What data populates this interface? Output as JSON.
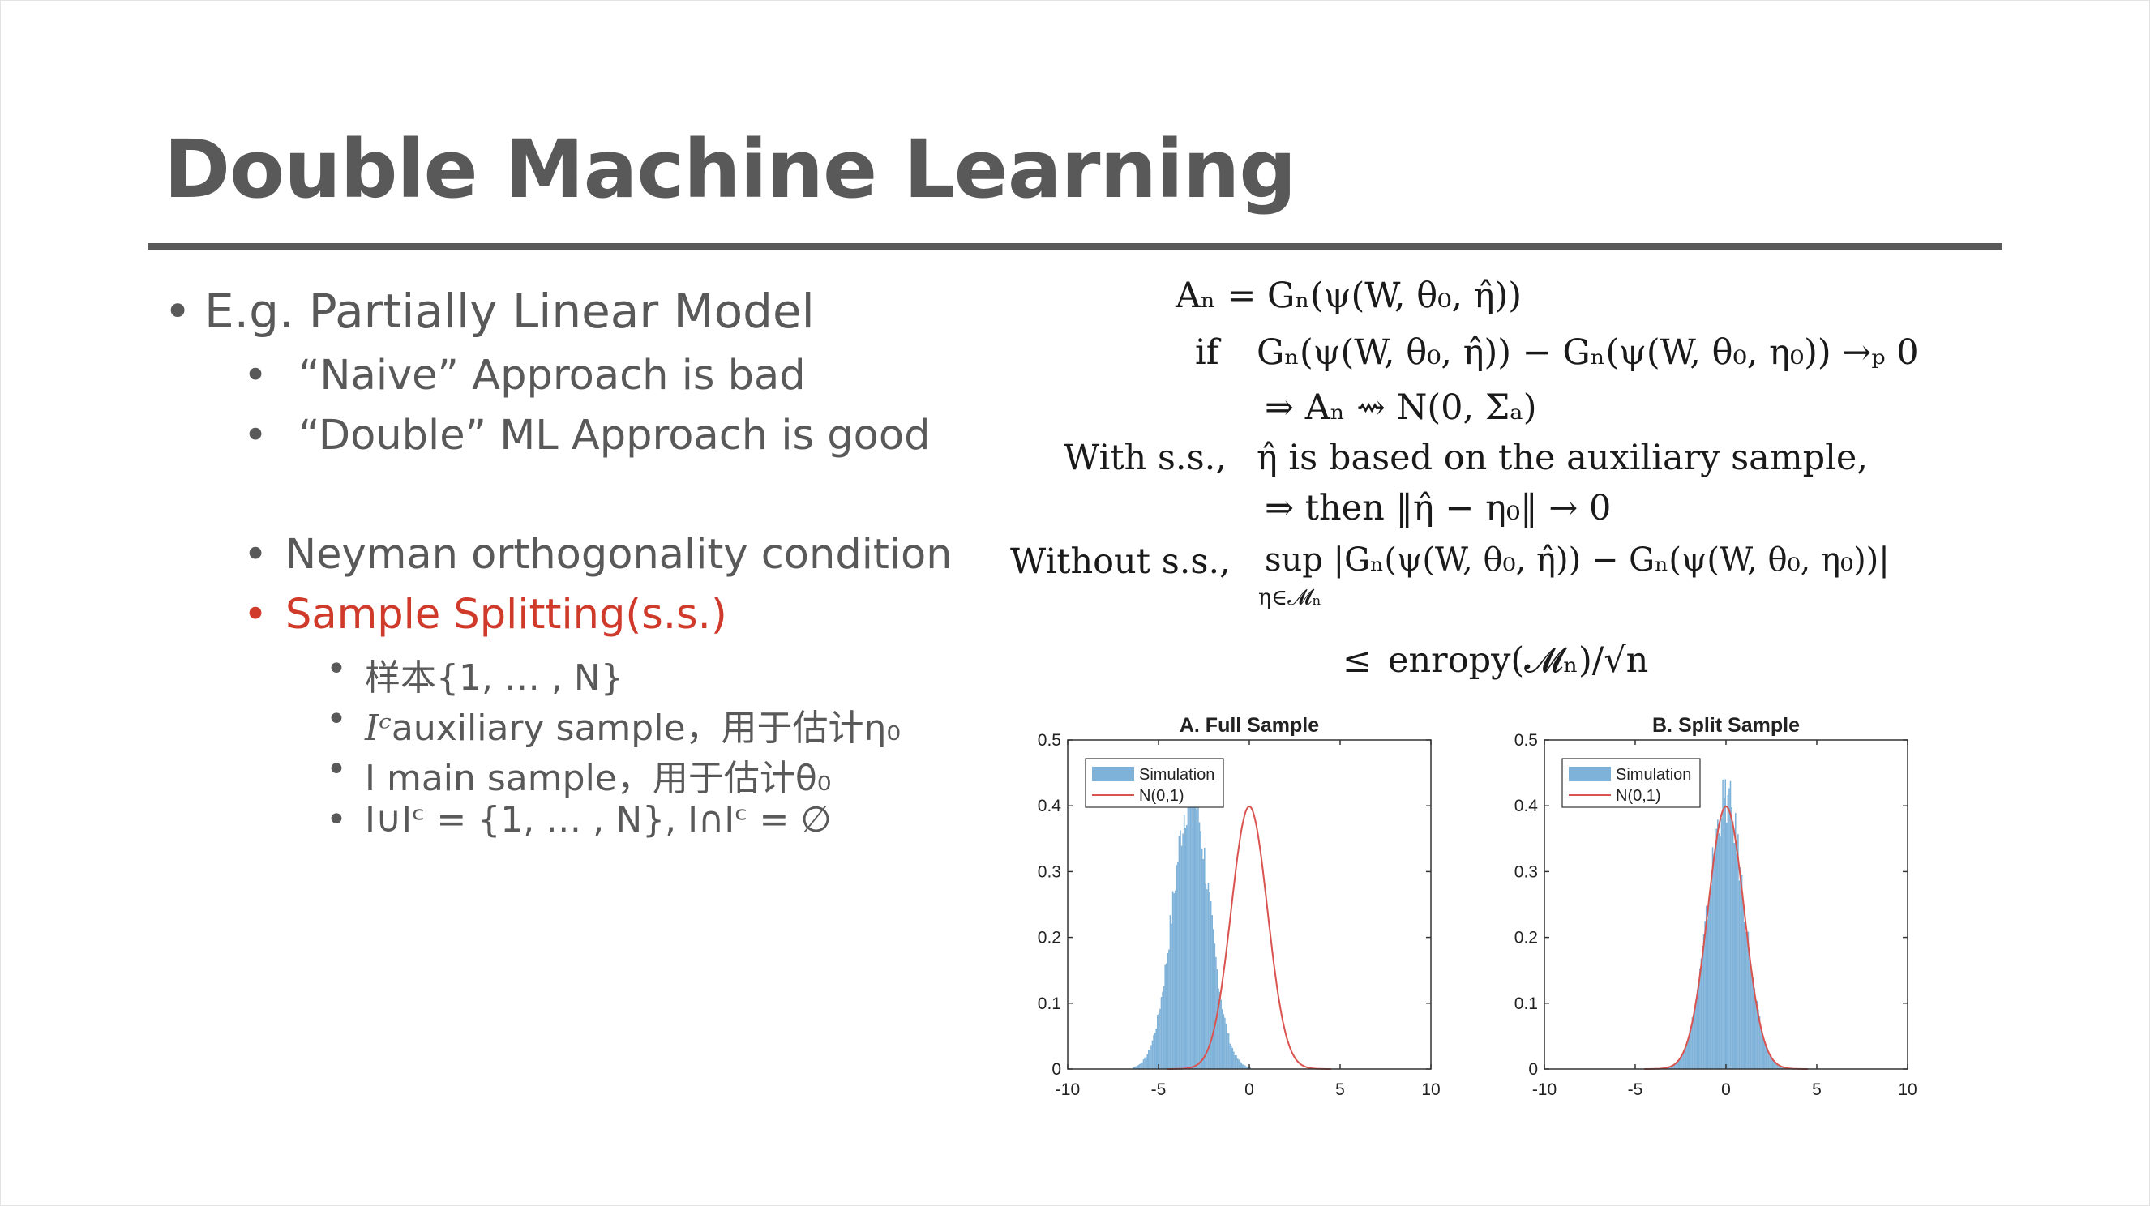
{
  "slide": {
    "title": "Double Machine Learning"
  },
  "bullets": {
    "l1_a": "E.g. Partially Linear Model",
    "l2_a": "“Naive”  Approach is bad",
    "l2_b": "“Double”  ML Approach is good",
    "l2_c": "Neyman orthogonality condition",
    "l2_d": "Sample Splitting(s.s.)",
    "l3_a": "样本{1, … , N}",
    "l3_b_math": "Iᶜ",
    "l3_b_text": "auxiliary sample，用于估计η₀",
    "l3_c": "I main sample，用于估计θ₀",
    "l3_d": "I∪Iᶜ = {1, … , N}, I∩Iᶜ = ∅"
  },
  "equations": {
    "eq1": "Aₙ = Gₙ(ψ(W, θ₀, η̂))",
    "eq2_if": "if",
    "eq2": "Gₙ(ψ(W, θ₀, η̂)) − Gₙ(ψ(W, θ₀, η₀)) →ₚ 0",
    "eq3": "⇒ Aₙ ⇝ N(0, Σₐ)",
    "eq4_label": "With s.s.,",
    "eq4": "η̂ is based on the auxiliary sample,",
    "eq5": "⇒ then ‖η̂ − η₀‖ → 0",
    "eq6_label": "Without s.s.,",
    "eq6": "sup |Gₙ(ψ(W, θ₀, η̂)) − Gₙ(ψ(W, θ₀, η₀))|",
    "eq6_sub": "η∈𝓜ₙ",
    "eq7_le": "≤",
    "eq7": "enropy(𝓜ₙ)/√n"
  },
  "chart_data": [
    {
      "type": "histogram",
      "title": "A.  Full Sample",
      "xlim": [
        -10,
        10
      ],
      "ylim": [
        0,
        0.5
      ],
      "x_ticks": [
        "-10",
        "-5",
        "0",
        "5",
        "10"
      ],
      "y_ticks": [
        "0",
        "0.1",
        "0.2",
        "0.3",
        "0.4",
        "0.5"
      ],
      "legend": [
        "Simulation",
        "N(0,1)"
      ],
      "legend_position": "top-left",
      "series": [
        {
          "name": "Simulation",
          "kind": "histogram",
          "center": -3.2,
          "sd": 1.0,
          "peak": 0.42,
          "color": "#7fb2d9"
        },
        {
          "name": "N(0,1)",
          "kind": "line",
          "center": 0,
          "sd": 1.0,
          "peak": 0.399,
          "color": "#d9534f"
        }
      ]
    },
    {
      "type": "histogram",
      "title": "B.  Split Sample",
      "xlim": [
        -10,
        10
      ],
      "ylim": [
        0,
        0.5
      ],
      "x_ticks": [
        "-10",
        "-5",
        "0",
        "5",
        "10"
      ],
      "y_ticks": [
        "0",
        "0.1",
        "0.2",
        "0.3",
        "0.4",
        "0.5"
      ],
      "legend": [
        "Simulation",
        "N(0,1)"
      ],
      "legend_position": "top-left",
      "series": [
        {
          "name": "Simulation",
          "kind": "histogram",
          "center": 0,
          "sd": 1.0,
          "peak": 0.41,
          "color": "#7fb2d9"
        },
        {
          "name": "N(0,1)",
          "kind": "line",
          "center": 0,
          "sd": 1.0,
          "peak": 0.399,
          "color": "#d9534f"
        }
      ]
    }
  ]
}
